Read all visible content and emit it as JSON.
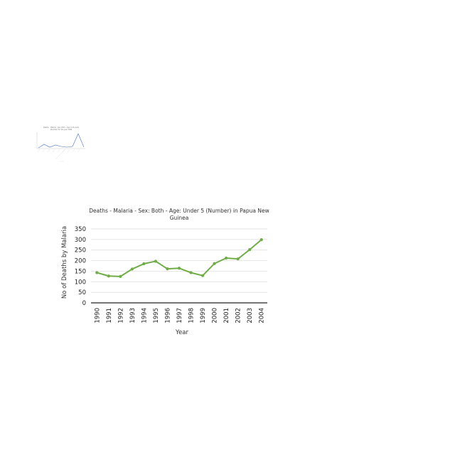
{
  "thumbnail": {
    "title_line1": "Deaths - Malaria - Sex: Both - Age: 5-14 years",
    "title_line2": "(Number) for the year 1990",
    "line_color": "#4472c4",
    "relative_values": [
      0,
      0.25,
      0.05,
      0.2,
      0.1,
      0.05,
      0.1,
      1,
      0.05
    ]
  },
  "chart_data": {
    "type": "line",
    "title_line1": "Deaths - Malaria - Sex: Both - Age: Under 5 (Number) in Papua New",
    "title_line2": "Guinea",
    "xlabel": "Year",
    "ylabel": "No of Deaths by Malaria",
    "categories": [
      "1990",
      "1991",
      "1992",
      "1993",
      "1994",
      "1995",
      "1996",
      "1997",
      "1998",
      "1999",
      "2000",
      "2001",
      "2002",
      "2003",
      "2004"
    ],
    "series": [
      {
        "values": [
          143,
          127,
          125,
          160,
          185,
          197,
          161,
          164,
          143,
          129,
          186,
          212,
          208,
          252,
          299
        ],
        "color": "#70ad47"
      }
    ],
    "ylim": [
      0,
      350
    ],
    "yticks": [
      0,
      50,
      100,
      150,
      200,
      250,
      300,
      350
    ],
    "grid": true,
    "legend": "none"
  }
}
